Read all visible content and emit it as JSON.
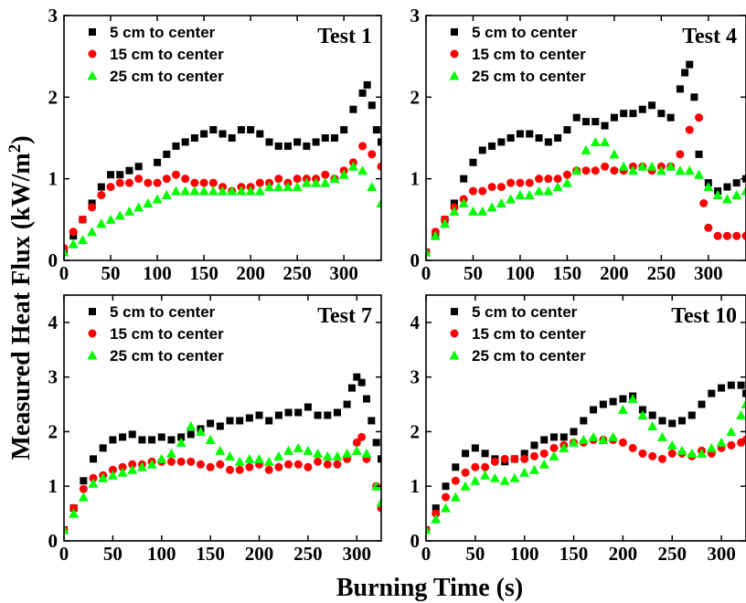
{
  "figure": {
    "ylabel": "Measured Heat Flux (kW/m",
    "ylabel_sup": "2",
    "ylabel_end": ")",
    "xlabel": "Burning Time (s)"
  },
  "colors": {
    "series_5cm": "#000000",
    "series_15cm": "#ff0000",
    "series_25cm": "#00ff00"
  },
  "chart_data": [
    {
      "type": "scatter",
      "title": "Test 1",
      "xlim": [
        0,
        340
      ],
      "ylim": [
        0,
        3
      ],
      "xticks": [
        0,
        50,
        100,
        150,
        200,
        250,
        300
      ],
      "yticks": [
        0,
        1,
        2,
        3
      ],
      "legend": "top-left",
      "series": [
        {
          "name": "5 cm to center",
          "marker": "square",
          "x": [
            0,
            10,
            20,
            30,
            40,
            50,
            60,
            70,
            80,
            100,
            110,
            120,
            130,
            140,
            150,
            160,
            170,
            180,
            190,
            200,
            210,
            220,
            230,
            240,
            250,
            260,
            270,
            280,
            290,
            300,
            310,
            320,
            325,
            330,
            335,
            340
          ],
          "y": [
            0.1,
            0.3,
            0.5,
            0.7,
            0.9,
            1.05,
            1.05,
            1.1,
            1.15,
            1.2,
            1.3,
            1.4,
            1.45,
            1.5,
            1.55,
            1.6,
            1.55,
            1.5,
            1.6,
            1.6,
            1.55,
            1.45,
            1.4,
            1.4,
            1.45,
            1.4,
            1.45,
            1.5,
            1.5,
            1.6,
            1.85,
            2.05,
            2.15,
            1.9,
            1.6,
            1.45
          ]
        },
        {
          "name": "15 cm to center",
          "marker": "circle",
          "x": [
            0,
            10,
            20,
            30,
            40,
            50,
            60,
            70,
            80,
            90,
            100,
            110,
            120,
            130,
            140,
            150,
            160,
            170,
            180,
            190,
            200,
            210,
            220,
            230,
            240,
            250,
            260,
            270,
            280,
            290,
            300,
            310,
            320,
            330,
            340
          ],
          "y": [
            0.15,
            0.35,
            0.5,
            0.65,
            0.8,
            0.9,
            0.95,
            0.95,
            1.0,
            0.95,
            0.95,
            1.0,
            1.05,
            1.0,
            0.95,
            0.95,
            0.95,
            0.9,
            0.85,
            0.9,
            0.9,
            0.95,
            0.95,
            1.0,
            0.95,
            1.0,
            1.0,
            1.0,
            1.05,
            1.0,
            1.1,
            1.2,
            1.4,
            1.3,
            1.15
          ]
        },
        {
          "name": "25 cm to center",
          "marker": "triangle",
          "x": [
            0,
            10,
            20,
            30,
            40,
            50,
            60,
            70,
            80,
            90,
            100,
            110,
            120,
            130,
            140,
            150,
            160,
            170,
            180,
            190,
            200,
            210,
            220,
            230,
            240,
            250,
            260,
            270,
            280,
            290,
            300,
            310,
            320,
            330,
            340
          ],
          "y": [
            0.1,
            0.2,
            0.25,
            0.35,
            0.45,
            0.5,
            0.55,
            0.6,
            0.65,
            0.7,
            0.75,
            0.8,
            0.85,
            0.85,
            0.85,
            0.85,
            0.85,
            0.85,
            0.85,
            0.85,
            0.85,
            0.85,
            0.9,
            0.9,
            0.9,
            0.9,
            0.95,
            0.95,
            0.95,
            1.0,
            1.05,
            1.15,
            1.1,
            0.9,
            0.7
          ]
        }
      ]
    },
    {
      "type": "scatter",
      "title": "Test 4",
      "xlim": [
        0,
        340
      ],
      "ylim": [
        0,
        3
      ],
      "xticks": [
        0,
        50,
        100,
        150,
        200,
        250,
        300
      ],
      "yticks": [
        0,
        1,
        2,
        3
      ],
      "legend": "top-left",
      "series": [
        {
          "name": "5 cm to center",
          "marker": "square",
          "x": [
            0,
            10,
            20,
            30,
            40,
            50,
            60,
            70,
            80,
            90,
            100,
            110,
            120,
            130,
            140,
            150,
            160,
            170,
            180,
            190,
            200,
            210,
            220,
            230,
            240,
            250,
            260,
            270,
            275,
            280,
            285,
            290,
            300,
            310,
            320,
            330,
            340
          ],
          "y": [
            0.1,
            0.3,
            0.5,
            0.7,
            1.0,
            1.2,
            1.35,
            1.4,
            1.45,
            1.5,
            1.55,
            1.55,
            1.5,
            1.45,
            1.5,
            1.6,
            1.75,
            1.7,
            1.7,
            1.65,
            1.75,
            1.8,
            1.8,
            1.85,
            1.9,
            1.8,
            1.75,
            2.1,
            2.3,
            2.4,
            2.0,
            1.3,
            0.95,
            0.85,
            0.9,
            0.95,
            1.0
          ]
        },
        {
          "name": "15 cm to center",
          "marker": "circle",
          "x": [
            0,
            10,
            20,
            30,
            40,
            50,
            60,
            70,
            80,
            90,
            100,
            110,
            120,
            130,
            140,
            150,
            160,
            170,
            180,
            190,
            200,
            210,
            220,
            230,
            240,
            250,
            260,
            270,
            280,
            290,
            295,
            300,
            310,
            320,
            330,
            340
          ],
          "y": [
            0.1,
            0.35,
            0.5,
            0.65,
            0.75,
            0.85,
            0.85,
            0.9,
            0.9,
            0.95,
            0.95,
            0.95,
            1.0,
            1.0,
            1.0,
            1.05,
            1.1,
            1.1,
            1.1,
            1.15,
            1.1,
            1.1,
            1.15,
            1.15,
            1.1,
            1.15,
            1.15,
            1.3,
            1.6,
            1.75,
            0.7,
            0.4,
            0.3,
            0.3,
            0.3,
            0.3
          ]
        },
        {
          "name": "25 cm to center",
          "marker": "triangle",
          "x": [
            0,
            10,
            20,
            30,
            40,
            50,
            60,
            70,
            80,
            90,
            100,
            110,
            120,
            130,
            140,
            150,
            160,
            170,
            180,
            190,
            200,
            210,
            220,
            230,
            240,
            250,
            260,
            270,
            280,
            290,
            300,
            310,
            320,
            330,
            340
          ],
          "y": [
            0.1,
            0.3,
            0.45,
            0.6,
            0.7,
            0.6,
            0.6,
            0.65,
            0.7,
            0.75,
            0.8,
            0.8,
            0.85,
            0.85,
            0.9,
            0.95,
            1.1,
            1.35,
            1.45,
            1.45,
            1.3,
            1.15,
            1.1,
            1.15,
            1.15,
            1.1,
            1.15,
            1.1,
            1.1,
            1.05,
            0.9,
            0.8,
            0.75,
            0.8,
            0.85
          ]
        }
      ]
    },
    {
      "type": "scatter",
      "title": "Test 7",
      "xlim": [
        0,
        325
      ],
      "ylim": [
        0,
        4.5
      ],
      "xticks": [
        0,
        50,
        100,
        150,
        200,
        250,
        300
      ],
      "yticks": [
        0,
        1,
        2,
        3,
        4
      ],
      "legend": "top-left",
      "series": [
        {
          "name": "5 cm to center",
          "marker": "square",
          "x": [
            0,
            10,
            20,
            30,
            40,
            50,
            60,
            70,
            80,
            90,
            100,
            110,
            120,
            130,
            140,
            150,
            160,
            170,
            180,
            190,
            200,
            210,
            220,
            230,
            240,
            250,
            260,
            270,
            280,
            290,
            295,
            300,
            305,
            310,
            315,
            320,
            325
          ],
          "y": [
            0.2,
            0.6,
            1.1,
            1.5,
            1.7,
            1.85,
            1.9,
            1.95,
            1.85,
            1.85,
            1.9,
            1.85,
            1.9,
            1.95,
            2.05,
            2.15,
            2.1,
            2.2,
            2.2,
            2.25,
            2.3,
            2.2,
            2.3,
            2.35,
            2.35,
            2.45,
            2.3,
            2.3,
            2.35,
            2.5,
            2.8,
            3.0,
            2.9,
            2.6,
            2.2,
            1.8,
            1.5
          ]
        },
        {
          "name": "15 cm to center",
          "marker": "circle",
          "x": [
            0,
            10,
            20,
            30,
            40,
            50,
            60,
            70,
            80,
            90,
            100,
            110,
            120,
            130,
            140,
            150,
            160,
            170,
            180,
            190,
            200,
            210,
            220,
            230,
            240,
            250,
            260,
            270,
            280,
            290,
            300,
            305,
            310,
            320,
            325
          ],
          "y": [
            0.2,
            0.6,
            0.95,
            1.15,
            1.2,
            1.3,
            1.35,
            1.4,
            1.4,
            1.45,
            1.45,
            1.45,
            1.45,
            1.45,
            1.4,
            1.35,
            1.4,
            1.3,
            1.3,
            1.35,
            1.4,
            1.3,
            1.35,
            1.4,
            1.4,
            1.35,
            1.45,
            1.4,
            1.4,
            1.5,
            1.8,
            1.9,
            1.5,
            1.0,
            0.6
          ]
        },
        {
          "name": "25 cm to center",
          "marker": "triangle",
          "x": [
            0,
            10,
            20,
            30,
            40,
            50,
            60,
            70,
            80,
            90,
            100,
            110,
            120,
            130,
            140,
            150,
            160,
            170,
            180,
            190,
            200,
            210,
            220,
            230,
            240,
            250,
            260,
            270,
            280,
            290,
            300,
            310,
            320,
            325
          ],
          "y": [
            0.2,
            0.5,
            0.8,
            1.05,
            1.15,
            1.2,
            1.25,
            1.3,
            1.35,
            1.4,
            1.5,
            1.6,
            1.8,
            2.1,
            2.0,
            1.85,
            1.65,
            1.55,
            1.45,
            1.5,
            1.5,
            1.45,
            1.55,
            1.65,
            1.7,
            1.65,
            1.6,
            1.55,
            1.55,
            1.6,
            1.65,
            1.6,
            1.0,
            0.7
          ]
        }
      ]
    },
    {
      "type": "scatter",
      "title": "Test 10",
      "xlim": [
        0,
        325
      ],
      "ylim": [
        0,
        4.5
      ],
      "xticks": [
        0,
        50,
        100,
        150,
        200,
        250,
        300
      ],
      "yticks": [
        0,
        1,
        2,
        3,
        4
      ],
      "legend": "top-left",
      "series": [
        {
          "name": "5 cm to center",
          "marker": "square",
          "x": [
            0,
            10,
            20,
            30,
            40,
            50,
            60,
            70,
            80,
            90,
            100,
            110,
            120,
            130,
            140,
            150,
            160,
            170,
            180,
            190,
            200,
            210,
            220,
            230,
            240,
            250,
            260,
            270,
            280,
            290,
            300,
            310,
            320,
            325
          ],
          "y": [
            0.2,
            0.6,
            1.0,
            1.35,
            1.6,
            1.7,
            1.6,
            1.5,
            1.45,
            1.5,
            1.6,
            1.75,
            1.85,
            1.9,
            1.9,
            2.0,
            2.2,
            2.4,
            2.5,
            2.55,
            2.6,
            2.65,
            2.4,
            2.3,
            2.2,
            2.15,
            2.2,
            2.3,
            2.5,
            2.7,
            2.8,
            2.85,
            2.85,
            2.7
          ]
        },
        {
          "name": "15 cm to center",
          "marker": "circle",
          "x": [
            0,
            10,
            20,
            30,
            40,
            50,
            60,
            70,
            80,
            90,
            100,
            110,
            120,
            130,
            140,
            150,
            160,
            170,
            180,
            190,
            200,
            210,
            220,
            230,
            240,
            250,
            260,
            270,
            280,
            290,
            300,
            310,
            320,
            325
          ],
          "y": [
            0.2,
            0.5,
            0.8,
            1.1,
            1.25,
            1.35,
            1.35,
            1.45,
            1.5,
            1.5,
            1.5,
            1.55,
            1.6,
            1.7,
            1.75,
            1.8,
            1.8,
            1.85,
            1.85,
            1.85,
            1.8,
            1.7,
            1.6,
            1.55,
            1.5,
            1.6,
            1.6,
            1.55,
            1.65,
            1.6,
            1.7,
            1.75,
            1.8,
            1.85
          ]
        },
        {
          "name": "25 cm to center",
          "marker": "triangle",
          "x": [
            0,
            10,
            20,
            30,
            40,
            50,
            60,
            70,
            80,
            90,
            100,
            110,
            120,
            130,
            140,
            150,
            160,
            170,
            180,
            190,
            200,
            210,
            220,
            230,
            240,
            250,
            260,
            270,
            280,
            290,
            300,
            310,
            320,
            325
          ],
          "y": [
            0.2,
            0.4,
            0.6,
            0.8,
            1.0,
            1.1,
            1.2,
            1.15,
            1.1,
            1.15,
            1.25,
            1.3,
            1.4,
            1.55,
            1.7,
            1.8,
            1.85,
            1.9,
            1.85,
            1.9,
            2.4,
            2.6,
            2.3,
            2.1,
            1.9,
            1.75,
            1.65,
            1.6,
            1.6,
            1.7,
            1.8,
            2.0,
            2.3,
            2.5
          ]
        }
      ]
    }
  ]
}
